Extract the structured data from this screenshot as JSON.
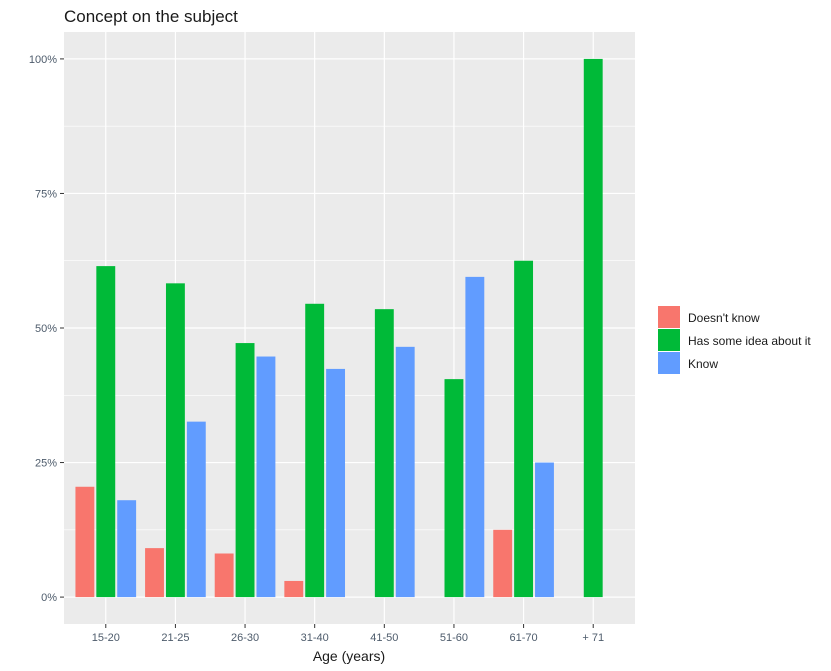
{
  "chart_data": {
    "type": "bar",
    "title": "Concept on the subject",
    "xlabel": "Age (years)",
    "ylabel": "",
    "categories": [
      "15-20",
      "21-25",
      "26-30",
      "31-40",
      "41-50",
      "51-60",
      "61-70",
      "+ 71"
    ],
    "series": [
      {
        "name": "Doesn't know",
        "color": "#F8766D",
        "values": [
          20.5,
          9.1,
          8.1,
          3.0,
          0,
          0,
          12.5,
          0
        ]
      },
      {
        "name": "Has some idea about it",
        "color": "#00BA38",
        "values": [
          61.5,
          58.3,
          47.2,
          54.5,
          53.5,
          40.5,
          62.5,
          100
        ]
      },
      {
        "name": "Know",
        "color": "#619CFF",
        "values": [
          18.0,
          32.6,
          44.7,
          42.4,
          46.5,
          59.5,
          25.0,
          0
        ]
      }
    ],
    "yticks": [
      0,
      25,
      50,
      75,
      100
    ],
    "ytick_labels": [
      "0%",
      "25%",
      "50%",
      "75%",
      "100%"
    ],
    "ylim": [
      -5,
      105
    ],
    "grid": true,
    "panel_background": "#EBEBEB",
    "legend_position": "right"
  }
}
